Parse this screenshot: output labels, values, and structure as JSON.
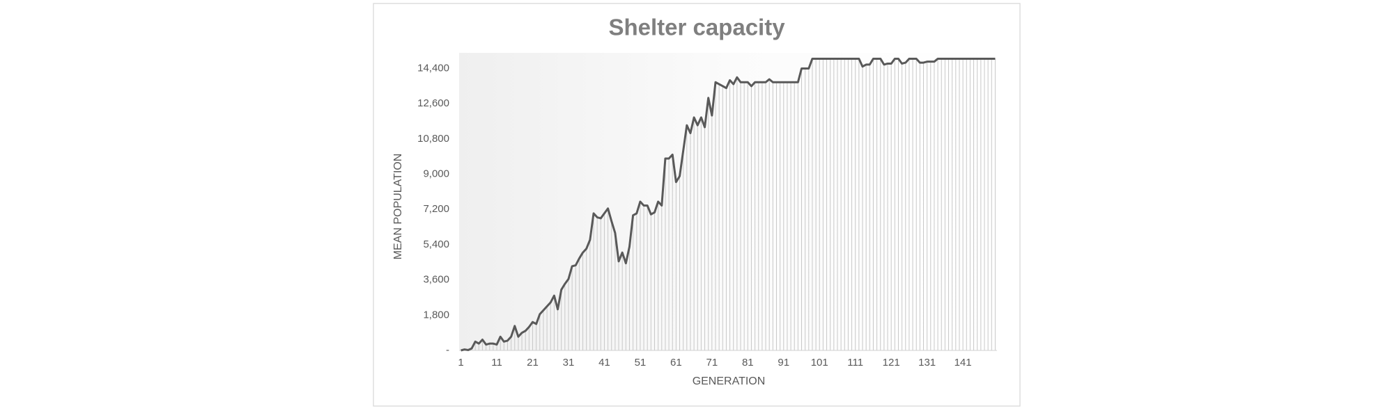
{
  "chart_data": {
    "type": "line",
    "title": "Shelter capacity",
    "x_label": "GENERATION",
    "y_label": "MEAN POPULATION",
    "categories": [
      "1",
      null,
      null,
      null,
      null,
      null,
      null,
      null,
      null,
      null,
      "11",
      null,
      null,
      null,
      null,
      null,
      null,
      null,
      null,
      null,
      "21",
      null,
      null,
      null,
      null,
      null,
      null,
      null,
      null,
      null,
      "31",
      null,
      null,
      null,
      null,
      null,
      null,
      null,
      null,
      null,
      "41",
      null,
      null,
      null,
      null,
      null,
      null,
      null,
      null,
      null,
      "51",
      null,
      null,
      null,
      null,
      null,
      null,
      null,
      null,
      null,
      "61",
      null,
      null,
      null,
      null,
      null,
      null,
      null,
      null,
      null,
      "71",
      null,
      null,
      null,
      null,
      null,
      null,
      null,
      null,
      null,
      "81",
      null,
      null,
      null,
      null,
      null,
      null,
      null,
      null,
      null,
      "91",
      null,
      null,
      null,
      null,
      null,
      null,
      null,
      null,
      null,
      "101",
      null,
      null,
      null,
      null,
      null,
      null,
      null,
      null,
      null,
      "111",
      null,
      null,
      null,
      null,
      null,
      null,
      null,
      null,
      null,
      "121",
      null,
      null,
      null,
      null,
      null,
      null,
      null,
      null,
      null,
      "131",
      null,
      null,
      null,
      null,
      null,
      null,
      null,
      null,
      null,
      "141",
      null,
      null,
      null,
      null,
      null,
      null,
      null,
      null,
      null
    ],
    "values": [
      0,
      50,
      20,
      100,
      450,
      350,
      550,
      300,
      350,
      350,
      300,
      700,
      450,
      500,
      700,
      1250,
      700,
      900,
      1000,
      1200,
      1450,
      1350,
      1850,
      2050,
      2250,
      2450,
      2800,
      2100,
      3100,
      3400,
      3650,
      4300,
      4350,
      4700,
      5000,
      5200,
      5650,
      7000,
      6800,
      6750,
      7000,
      7250,
      6600,
      6000,
      4550,
      5000,
      4450,
      5300,
      6900,
      7000,
      7600,
      7400,
      7400,
      6950,
      7050,
      7600,
      7400,
      9800,
      9800,
      10000,
      8600,
      8900,
      10200,
      11500,
      11100,
      11900,
      11500,
      11900,
      11400,
      12900,
      12000,
      13700,
      13600,
      13500,
      13400,
      13800,
      13600,
      13950,
      13700,
      13700,
      13700,
      13500,
      13700,
      13700,
      13700,
      13700,
      13850,
      13700,
      13700,
      13700,
      13700,
      13700,
      13700,
      13700,
      13700,
      14400,
      14400,
      14400,
      14900,
      14900,
      14900,
      14900,
      14900,
      14900,
      14900,
      14900,
      14900,
      14900,
      14900,
      14900,
      14900,
      14900,
      14500,
      14600,
      14600,
      14900,
      14900,
      14900,
      14600,
      14650,
      14650,
      14900,
      14900,
      14650,
      14700,
      14900,
      14900,
      14900,
      14700,
      14700,
      14750,
      14750,
      14750,
      14900,
      14900,
      14900,
      14900,
      14900,
      14900,
      14900,
      14900,
      14900,
      14900,
      14900,
      14900,
      14900,
      14900,
      14900,
      14900,
      14900
    ],
    "color": "#595959",
    "drop_lines": true,
    "drop_line_color": "#c8c8c8",
    "ylim": [
      0,
      15200
    ],
    "yticks": [
      {
        "value": 0,
        "label": "-"
      },
      {
        "value": 1800,
        "label": "1,800"
      },
      {
        "value": 3600,
        "label": "3,600"
      },
      {
        "value": 5400,
        "label": "5,400"
      },
      {
        "value": 7200,
        "label": "7,200"
      },
      {
        "value": 9000,
        "label": "9,000"
      },
      {
        "value": 10800,
        "label": "10,800"
      },
      {
        "value": 12600,
        "label": "12,600"
      },
      {
        "value": 14400,
        "label": "14,400"
      }
    ],
    "grid": false
  }
}
